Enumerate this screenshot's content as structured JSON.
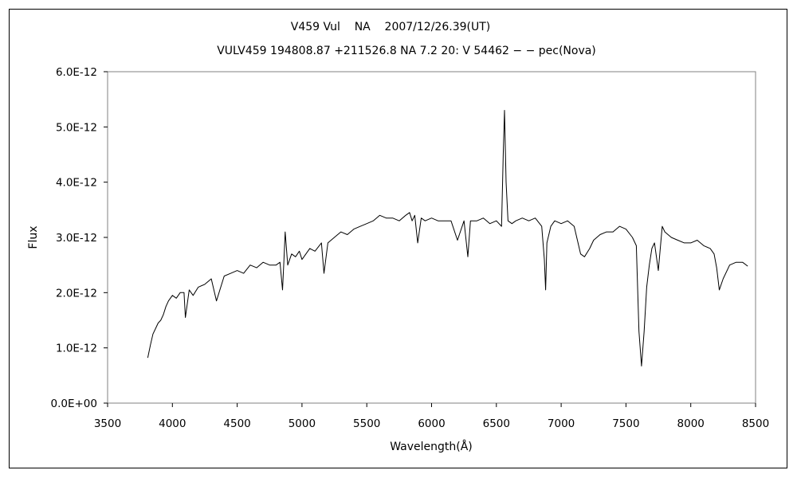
{
  "chart_data": {
    "type": "line",
    "title": "V459 Vul    NA    2007/12/26.39(UT)",
    "subtitle": "VULV459 194808.87 +211526.8 NA 7.2 20: V 54462 − − pec(Nova)",
    "xlabel": "Wavelength(Å)",
    "ylabel": "Flux",
    "xlim": [
      3500,
      8500
    ],
    "ylim": [
      0,
      6e-12
    ],
    "x_ticks": [
      3500,
      4000,
      4500,
      5000,
      5500,
      6000,
      6500,
      7000,
      7500,
      8000,
      8500
    ],
    "x_tick_labels": [
      "3500",
      "4000",
      "4500",
      "5000",
      "5500",
      "6000",
      "6500",
      "7000",
      "7500",
      "8000",
      "8500"
    ],
    "y_ticks": [
      0,
      1e-12,
      2e-12,
      3e-12,
      4e-12,
      5e-12,
      6e-12
    ],
    "y_tick_labels": [
      "0.0E+00",
      "1.0E-12",
      "2.0E-12",
      "3.0E-12",
      "4.0E-12",
      "5.0E-12",
      "6.0E-12"
    ],
    "grid": false,
    "legend": "none",
    "series": [
      {
        "color": "#000000",
        "x": [
          3810,
          3830,
          3850,
          3870,
          3890,
          3910,
          3930,
          3950,
          3970,
          4000,
          4030,
          4060,
          4090,
          4100,
          4130,
          4160,
          4200,
          4250,
          4300,
          4340,
          4400,
          4450,
          4500,
          4550,
          4600,
          4650,
          4700,
          4750,
          4800,
          4830,
          4850,
          4861,
          4870,
          4890,
          4920,
          4950,
          4980,
          5000,
          5030,
          5060,
          5100,
          5150,
          5170,
          5200,
          5250,
          5300,
          5350,
          5400,
          5450,
          5500,
          5550,
          5600,
          5650,
          5700,
          5750,
          5800,
          5830,
          5850,
          5870,
          5893,
          5920,
          5950,
          6000,
          6050,
          6100,
          6150,
          6200,
          6250,
          6280,
          6300,
          6350,
          6400,
          6450,
          6500,
          6540,
          6553,
          6563,
          6575,
          6590,
          6620,
          6650,
          6700,
          6750,
          6800,
          6850,
          6870,
          6880,
          6890,
          6920,
          6950,
          7000,
          7050,
          7100,
          7150,
          7180,
          7220,
          7250,
          7300,
          7350,
          7400,
          7450,
          7500,
          7550,
          7580,
          7600,
          7620,
          7640,
          7660,
          7680,
          7700,
          7720,
          7750,
          7780,
          7800,
          7850,
          7900,
          7950,
          8000,
          8050,
          8100,
          8150,
          8180,
          8200,
          8220,
          8250,
          8300,
          8350,
          8400,
          8440
        ],
        "y": [
          8.2e-13,
          1.05e-12,
          1.25e-12,
          1.35e-12,
          1.45e-12,
          1.5e-12,
          1.6e-12,
          1.75e-12,
          1.85e-12,
          1.95e-12,
          1.9e-12,
          2e-12,
          2e-12,
          1.55e-12,
          2.05e-12,
          1.95e-12,
          2.1e-12,
          2.15e-12,
          2.25e-12,
          1.85e-12,
          2.3e-12,
          2.35e-12,
          2.4e-12,
          2.35e-12,
          2.5e-12,
          2.45e-12,
          2.55e-12,
          2.5e-12,
          2.5e-12,
          2.55e-12,
          2.05e-12,
          2.6e-12,
          3.1e-12,
          2.5e-12,
          2.7e-12,
          2.65e-12,
          2.75e-12,
          2.6e-12,
          2.7e-12,
          2.8e-12,
          2.75e-12,
          2.9e-12,
          2.35e-12,
          2.9e-12,
          3e-12,
          3.1e-12,
          3.05e-12,
          3.15e-12,
          3.2e-12,
          3.25e-12,
          3.3e-12,
          3.4e-12,
          3.35e-12,
          3.35e-12,
          3.3e-12,
          3.4e-12,
          3.45e-12,
          3.3e-12,
          3.4e-12,
          2.9e-12,
          3.35e-12,
          3.3e-12,
          3.35e-12,
          3.3e-12,
          3.3e-12,
          3.3e-12,
          2.95e-12,
          3.3e-12,
          2.65e-12,
          3.3e-12,
          3.3e-12,
          3.35e-12,
          3.25e-12,
          3.3e-12,
          3.2e-12,
          4.5e-12,
          5.3e-12,
          4e-12,
          3.3e-12,
          3.25e-12,
          3.3e-12,
          3.35e-12,
          3.3e-12,
          3.35e-12,
          3.2e-12,
          2.6e-12,
          2.05e-12,
          2.9e-12,
          3.2e-12,
          3.3e-12,
          3.25e-12,
          3.3e-12,
          3.2e-12,
          2.7e-12,
          2.65e-12,
          2.8e-12,
          2.95e-12,
          3.05e-12,
          3.1e-12,
          3.1e-12,
          3.2e-12,
          3.15e-12,
          3e-12,
          2.85e-12,
          1.3e-12,
          6.7e-13,
          1.3e-12,
          2.1e-12,
          2.5e-12,
          2.8e-12,
          2.9e-12,
          2.4e-12,
          3.2e-12,
          3.1e-12,
          3e-12,
          2.95e-12,
          2.9e-12,
          2.9e-12,
          2.95e-12,
          2.85e-12,
          2.8e-12,
          2.7e-12,
          2.45e-12,
          2.05e-12,
          2.25e-12,
          2.5e-12,
          2.55e-12,
          2.55e-12,
          2.48e-12
        ]
      }
    ]
  }
}
